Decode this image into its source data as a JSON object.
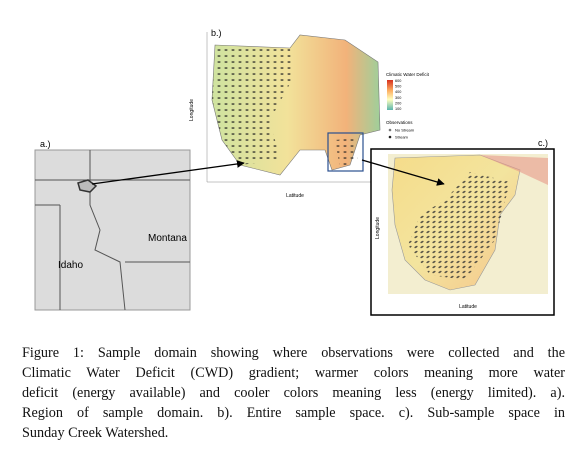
{
  "figure": {
    "panels": {
      "a": {
        "label": "a.)",
        "regions": [
          "Montana",
          "Idaho"
        ]
      },
      "b": {
        "label": "b.)",
        "x_label": "Latitude",
        "y_label": "Longitude",
        "legend": {
          "title": "Climatic Water Deficit",
          "ticks": [
            600,
            500,
            400,
            300,
            200,
            100
          ],
          "observations_title": "Observations",
          "observations": [
            "No Stream",
            "Stream"
          ]
        }
      },
      "c": {
        "label": "c.)",
        "x_label": "Latitude",
        "y_label": "Longitude"
      }
    },
    "caption": [
      "Figure 1: Sample domain showing where observations were collected and the",
      "Climatic Water Deficit (CWD) gradient; warmer colors meaning more water",
      "deficit (energy available) and cooler colors meaning less (energy limited). a).",
      "Region of sample domain. b). Entire sample space. c). Sub-sample space in",
      "Sunday Creek Watershed."
    ]
  }
}
